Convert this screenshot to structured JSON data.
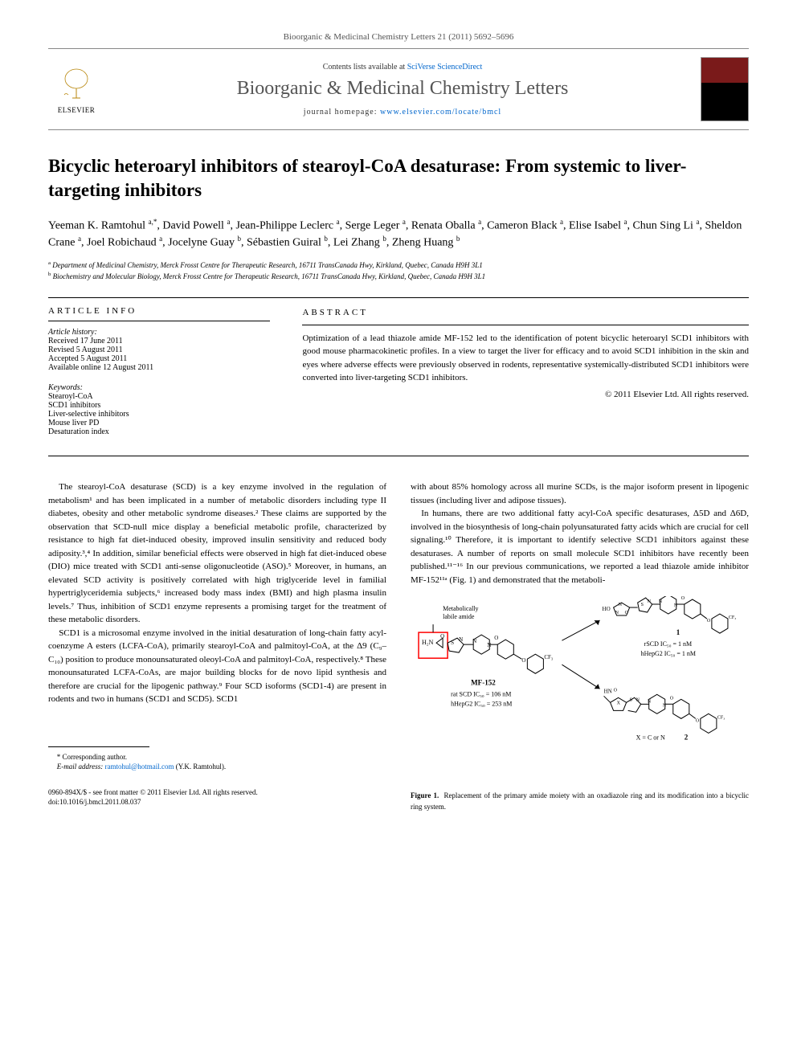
{
  "journal_ref": "Bioorganic & Medicinal Chemistry Letters 21 (2011) 5692–5696",
  "contents_prefix": "Contents lists available at ",
  "contents_link": "SciVerse ScienceDirect",
  "journal_name": "Bioorganic & Medicinal Chemistry Letters",
  "homepage_prefix": "journal homepage: ",
  "homepage_url": "www.elsevier.com/locate/bmcl",
  "elsevier": "ELSEVIER",
  "title": "Bicyclic heteroaryl inhibitors of stearoyl-CoA desaturase: From systemic to liver-targeting inhibitors",
  "authors_html": "Yeeman K. Ramtohul <sup>a,*</sup>, David Powell <sup>a</sup>, Jean-Philippe Leclerc <sup>a</sup>, Serge Leger <sup>a</sup>, Renata Oballa <sup>a</sup>, Cameron Black <sup>a</sup>, Elise Isabel <sup>a</sup>, Chun Sing Li <sup>a</sup>, Sheldon Crane <sup>a</sup>, Joel Robichaud <sup>a</sup>, Jocelyne Guay <sup>b</sup>, Sébastien Guiral <sup>b</sup>, Lei Zhang <sup>b</sup>, Zheng Huang <sup>b</sup>",
  "affiliations": {
    "a": "Department of Medicinal Chemistry, Merck Frosst Centre for Therapeutic Research, 16711 TransCanada Hwy, Kirkland, Quebec, Canada H9H 3L1",
    "b": "Biochemistry and Molecular Biology, Merck Frosst Centre for Therapeutic Research, 16711 TransCanada Hwy, Kirkland, Quebec, Canada H9H 3L1"
  },
  "article_info": {
    "header": "ARTICLE INFO",
    "history_label": "Article history:",
    "received": "Received 17 June 2011",
    "revised": "Revised 5 August 2011",
    "accepted": "Accepted 5 August 2011",
    "online": "Available online 12 August 2011",
    "keywords_label": "Keywords:",
    "keywords": [
      "Stearoyl-CoA",
      "SCD1 inhibitors",
      "Liver-selective inhibitors",
      "Mouse liver PD",
      "Desaturation index"
    ]
  },
  "abstract": {
    "header": "ABSTRACT",
    "text": "Optimization of a lead thiazole amide MF-152 led to the identification of potent bicyclic heteroaryl SCD1 inhibitors with good mouse pharmacokinetic profiles. In a view to target the liver for efficacy and to avoid SCD1 inhibition in the skin and eyes where adverse effects were previously observed in rodents, representative systemically-distributed SCD1 inhibitors were converted into liver-targeting SCD1 inhibitors.",
    "copyright": "© 2011 Elsevier Ltd. All rights reserved."
  },
  "body": {
    "col1": {
      "p1": "The stearoyl-CoA desaturase (SCD) is a key enzyme involved in the regulation of metabolism¹ and has been implicated in a number of metabolic disorders including type II diabetes, obesity and other metabolic syndrome diseases.² These claims are supported by the observation that SCD-null mice display a beneficial metabolic profile, characterized by resistance to high fat diet-induced obesity, improved insulin sensitivity and reduced body adiposity.³,⁴ In addition, similar beneficial effects were observed in high fat diet-induced obese (DIO) mice treated with SCD1 anti-sense oligonucleotide (ASO).⁵ Moreover, in humans, an elevated SCD activity is positively correlated with high triglyceride level in familial hypertriglyceridemia subjects,⁶ increased body mass index (BMI) and high plasma insulin levels.⁷ Thus, inhibition of SCD1 enzyme represents a promising target for the treatment of these metabolic disorders.",
      "p2": "SCD1 is a microsomal enzyme involved in the initial desaturation of long-chain fatty acyl-coenzyme A esters (LCFA-CoA), primarily stearoyl-CoA and palmitoyl-CoA, at the Δ9 (C₉–C₁₀) position to produce monounsaturated oleoyl-CoA and palmitoyl-CoA, respectively.⁸ These monounsaturated LCFA-CoAs, are major building blocks for de novo lipid synthesis and therefore are crucial for the lipogenic pathway.⁹ Four SCD isoforms (SCD1-4) are present in rodents and two in humans (SCD1 and SCD5). SCD1"
    },
    "col2": {
      "p1": "with about 85% homology across all murine SCDs, is the major isoform present in lipogenic tissues (including liver and adipose tissues).",
      "p2": "In humans, there are two additional fatty acyl-CoA specific desaturases, Δ5D and Δ6D, involved in the biosynthesis of long-chain polyunsaturated fatty acids which are crucial for cell signaling.¹⁰ Therefore, it is important to identify selective SCD1 inhibitors against these desaturases. A number of reports on small molecule SCD1 inhibitors have recently been published.¹¹⁻¹⁶ In our previous communications, we reported a lead thiazole amide inhibitor MF-152¹¹ᵃ (Fig. 1) and demonstrated that the metaboli-"
    }
  },
  "figure1": {
    "labile_label": "Metabolically labile amide",
    "compound_left": "MF-152",
    "left_ic50_1": "rat SCD IC₅₀ = 106 nM",
    "left_ic50_2": "hHepG2 IC₅₀ = 253 nM",
    "compound_1": "1",
    "right_ic50_1": "rSCD IC₅₀ = 1 nM",
    "right_ic50_2": "hHepG2 IC₅₀ = 1 nM",
    "compound_2": "2",
    "x_label": "X = C or N",
    "caption": "Figure 1.   Replacement of the primary amide moiety with an oxadiazole ring and its modification into a bicyclic ring system.",
    "colors": {
      "structure": "#000000",
      "highlight_box": "#ff0000",
      "arrow": "#000000",
      "text": "#000000"
    }
  },
  "footnote": {
    "corr": "* Corresponding author.",
    "email_label": "E-mail address:",
    "email": "ramtohul@hotmail.com",
    "email_who": "(Y.K. Ramtohul)."
  },
  "doi": {
    "line1": "0960-894X/$ - see front matter © 2011 Elsevier Ltd. All rights reserved.",
    "line2": "doi:10.1016/j.bmcl.2011.08.037"
  }
}
